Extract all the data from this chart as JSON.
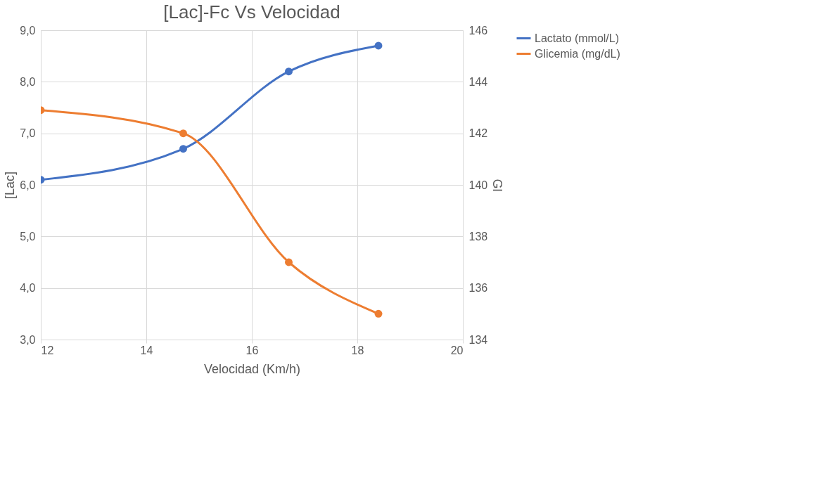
{
  "chart_data": {
    "type": "line",
    "title": "[Lac]-Fc Vs Velocidad",
    "xlabel": "Velocidad (Km/h)",
    "ylabel": "[Lac]",
    "y2label": "Gl",
    "xlim": [
      12,
      20
    ],
    "xticks": [
      12,
      14,
      16,
      18,
      20
    ],
    "ylim": [
      3,
      9
    ],
    "yticks": [
      {
        "value": 3,
        "label": "3,0"
      },
      {
        "value": 4,
        "label": "4,0"
      },
      {
        "value": 5,
        "label": "5,0"
      },
      {
        "value": 6,
        "label": "6,0"
      },
      {
        "value": 7,
        "label": "7,0"
      },
      {
        "value": 8,
        "label": "8,0"
      },
      {
        "value": 9,
        "label": "9,0"
      }
    ],
    "y2lim": [
      134,
      146
    ],
    "y2ticks": [
      134,
      136,
      138,
      140,
      142,
      144,
      146
    ],
    "x": [
      12,
      14.7,
      16.7,
      18.4
    ],
    "series": [
      {
        "name": "Lactato (mmol/L)",
        "color": "#4472c4",
        "values": [
          6.1,
          6.7,
          8.2,
          8.7
        ]
      },
      {
        "name": "Glicemia (mg/dL)",
        "color": "#ed7d31",
        "values": [
          142.9,
          142,
          137,
          135
        ],
        "axis": "y2"
      }
    ],
    "grid": true,
    "legend": "right",
    "marker": "circle",
    "line_style": "solid"
  }
}
